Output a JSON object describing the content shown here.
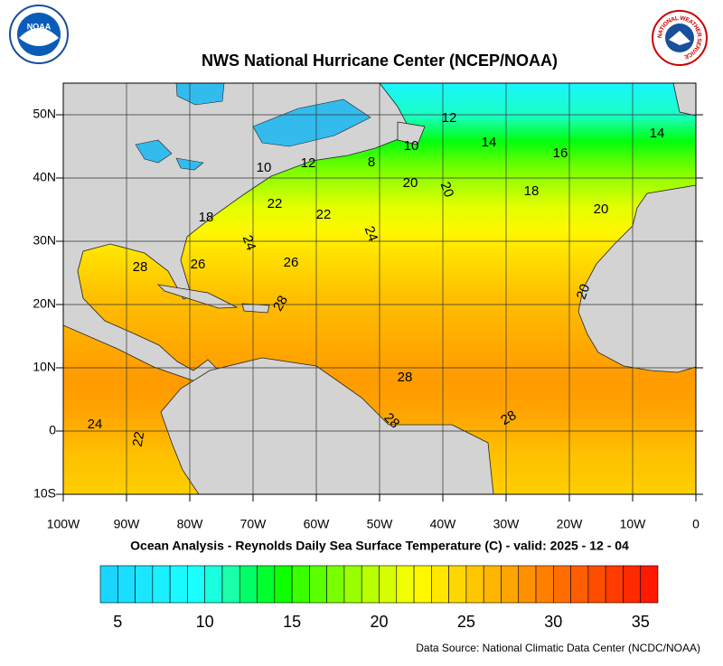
{
  "header": {
    "title": "NWS National Hurricane Center (NCEP/NOAA)",
    "subtitle": "Ocean Analysis - Reynolds Daily Sea Surface Temperature (C) - valid: 2025 - 12 - 04",
    "source": "Data Source: National Climatic Data Center (NCDC/NOAA)"
  },
  "logos": {
    "left": "NOAA",
    "right": "NATIONAL WEATHER SERVICE"
  },
  "map": {
    "lonlim": [
      -100,
      0
    ],
    "latlim": [
      -10,
      55
    ],
    "lon_ticks": [
      {
        "value": -100,
        "label": "100W"
      },
      {
        "value": -90,
        "label": "90W"
      },
      {
        "value": -80,
        "label": "80W"
      },
      {
        "value": -70,
        "label": "70W"
      },
      {
        "value": -60,
        "label": "60W"
      },
      {
        "value": -50,
        "label": "50W"
      },
      {
        "value": -40,
        "label": "40W"
      },
      {
        "value": -30,
        "label": "30W"
      },
      {
        "value": -20,
        "label": "20W"
      },
      {
        "value": -10,
        "label": "10W"
      },
      0
    ],
    "lat_ticks": [
      {
        "value": -10,
        "label": "10S"
      },
      0,
      {
        "value": 10,
        "label": "10N"
      },
      {
        "value": 20,
        "label": "20N"
      },
      {
        "value": 30,
        "label": "30N"
      },
      {
        "value": 40,
        "label": "40N"
      },
      {
        "value": 50,
        "label": "50N"
      }
    ],
    "contour_labels": [
      "12",
      "14",
      "10",
      "8",
      "12",
      "10",
      "16",
      "14",
      "20",
      "20",
      "18",
      "20",
      "22",
      "22",
      "18",
      "24",
      "24",
      "26",
      "28",
      "26",
      "28",
      "20",
      "28",
      "28",
      "28",
      "24",
      "22"
    ]
  },
  "colorbar": {
    "lim": [
      4,
      36
    ],
    "ticks": [
      5,
      10,
      15,
      20,
      25,
      30,
      35
    ]
  }
}
